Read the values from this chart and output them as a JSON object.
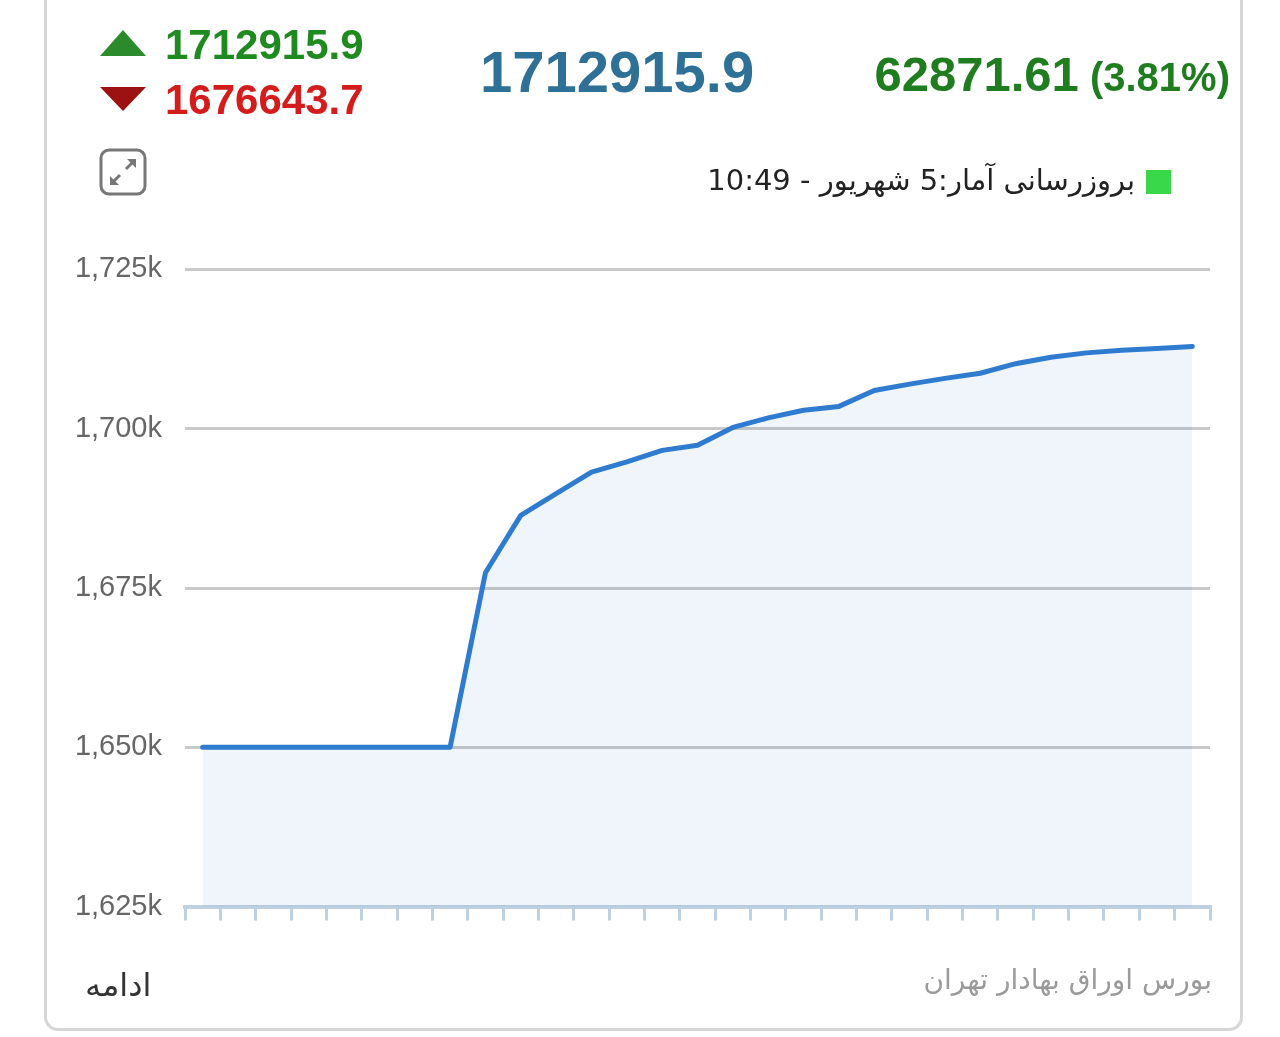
{
  "chart_data": {
    "type": "area",
    "categories": [
      null,
      null,
      null,
      null,
      null,
      null,
      null,
      null,
      null,
      null,
      null,
      null,
      null,
      null,
      null,
      null,
      null,
      null,
      null,
      null,
      null,
      null,
      null,
      null,
      null,
      null,
      null,
      null,
      null
    ],
    "series": [
      {
        "color": "#2f7bd0",
        "values": [
          1650000,
          1650000,
          1650000,
          1650000,
          1650000,
          1650000,
          1650000,
          1650000,
          1677400,
          1686400,
          1689800,
          1693200,
          1694800,
          1696600,
          1697400,
          1700200,
          1701700,
          1702900,
          1703500,
          1706000,
          1707000,
          1707900,
          1708700,
          1710200,
          1711200,
          1711900,
          1712300,
          1712600,
          1712900
        ]
      }
    ],
    "ylim": [
      1625000,
      1725000
    ],
    "yticks": [
      {
        "value": 1625000,
        "label": "1,625k"
      },
      {
        "value": 1650000,
        "label": "1,650k"
      },
      {
        "value": 1675000,
        "label": "1,675k"
      },
      {
        "value": 1700000,
        "label": "1,700k"
      },
      {
        "value": 1725000,
        "label": "1,725k"
      }
    ],
    "grid": "y",
    "tick_labels": "y",
    "marker": "none",
    "annotations": [
      "1712915.9",
      "1676643.7",
      "1712915.9",
      "62871.61 (3.81%)",
      "بروزرسانی آمار:5 شهریور - 10:49",
      "بورس اوراق بهادار تهران",
      "ادامه"
    ]
  }
}
